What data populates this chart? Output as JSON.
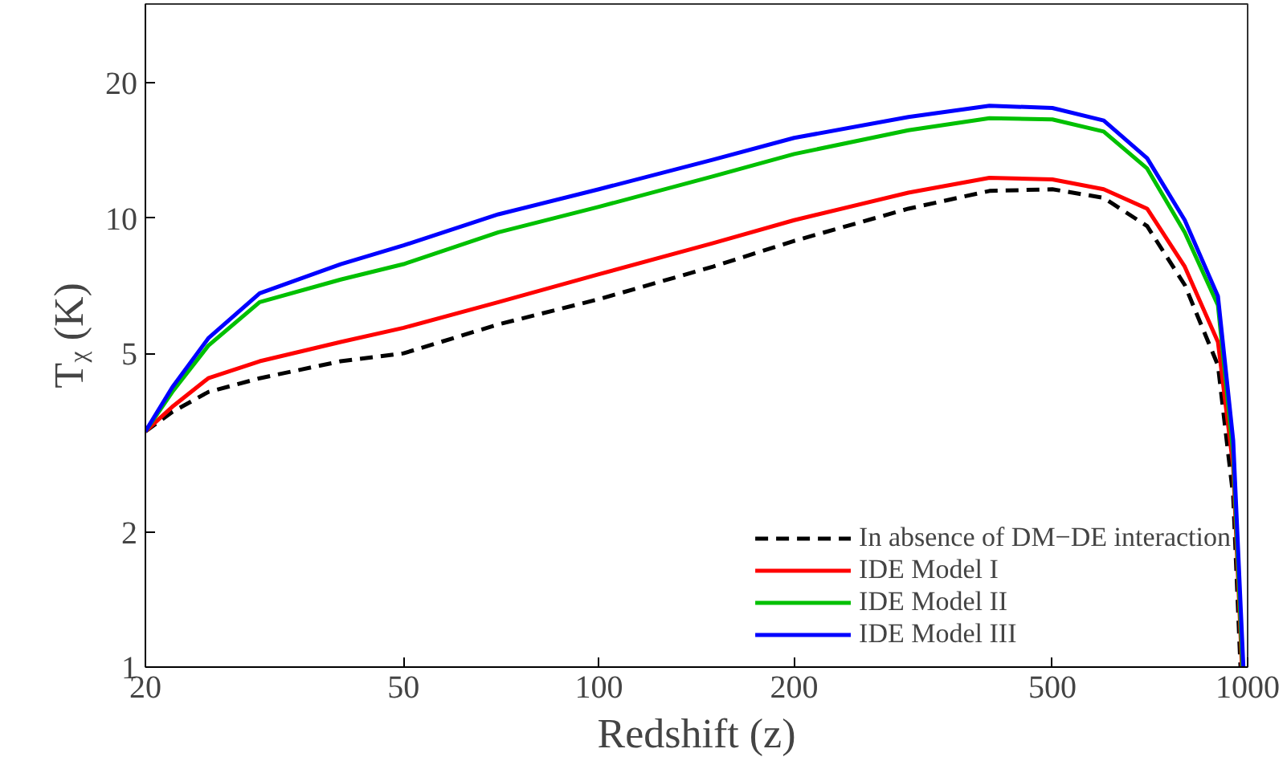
{
  "chart_data": {
    "type": "line",
    "xlabel": "Redshift (z)",
    "ylabel": "Tᵪ (K)",
    "log": "xy",
    "xlim": [
      20,
      1000
    ],
    "ylim": [
      1,
      30
    ],
    "xticks": [
      20,
      50,
      100,
      200,
      500,
      1000
    ],
    "yticks": [
      1,
      2,
      5,
      10,
      20
    ],
    "grid": false,
    "legend": "bottom right",
    "series": [
      {
        "name": "In absence of DM−DE interaction",
        "color": "#000000",
        "line_style": "dashed",
        "x": [
          20,
          22,
          25,
          30,
          40,
          50,
          70,
          100,
          150,
          200,
          300,
          400,
          500,
          600,
          700,
          800,
          900,
          950,
          975
        ],
        "values": [
          3.35,
          3.7,
          4.1,
          4.4,
          4.8,
          5.0,
          5.8,
          6.6,
          7.8,
          8.9,
          10.5,
          11.5,
          11.6,
          11.1,
          9.6,
          7.1,
          4.7,
          2.4,
          1
        ]
      },
      {
        "name": "IDE Model I",
        "color": "#ff0000",
        "x": [
          20,
          22,
          25,
          30,
          40,
          50,
          70,
          100,
          150,
          200,
          300,
          400,
          500,
          600,
          700,
          800,
          900,
          950,
          980
        ],
        "values": [
          3.35,
          3.8,
          4.4,
          4.8,
          5.3,
          5.7,
          6.5,
          7.5,
          8.8,
          9.9,
          11.4,
          12.3,
          12.2,
          11.6,
          10.5,
          7.8,
          5.3,
          2.8,
          1
        ]
      },
      {
        "name": "IDE Model II",
        "color": "#00c000",
        "x": [
          20,
          22,
          25,
          30,
          40,
          50,
          70,
          100,
          150,
          200,
          300,
          400,
          500,
          600,
          700,
          800,
          900,
          950,
          982
        ],
        "values": [
          3.35,
          4.1,
          5.2,
          6.5,
          7.3,
          7.9,
          9.3,
          10.6,
          12.4,
          13.9,
          15.7,
          16.7,
          16.6,
          15.6,
          12.9,
          9.3,
          6.4,
          3.0,
          1
        ]
      },
      {
        "name": "IDE Model III",
        "color": "#0000ff",
        "x": [
          20,
          22,
          25,
          30,
          40,
          50,
          70,
          100,
          150,
          200,
          300,
          400,
          500,
          600,
          700,
          800,
          900,
          950,
          985
        ],
        "values": [
          3.35,
          4.2,
          5.4,
          6.8,
          7.9,
          8.7,
          10.2,
          11.6,
          13.5,
          15.1,
          16.8,
          17.8,
          17.6,
          16.5,
          13.6,
          9.9,
          6.7,
          3.2,
          1
        ]
      }
    ]
  }
}
